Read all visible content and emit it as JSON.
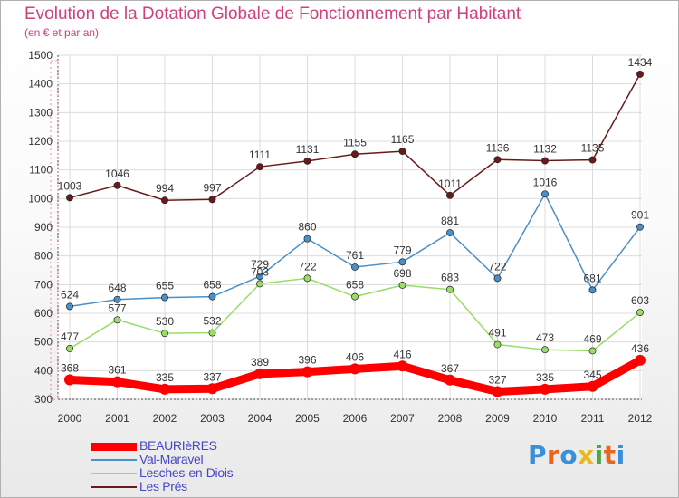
{
  "header": {
    "title": "Evolution de la Dotation Globale de Fonctionnement par Habitant",
    "subtitle": "(en € et par an)"
  },
  "logo": {
    "text": "Proxiti",
    "letter_colors": [
      "#3a8fd8",
      "#e8661e",
      "#3a8fd8",
      "#e8b81e",
      "#4aa84a",
      "#e8661e",
      "#3a8fd8"
    ]
  },
  "chart_data": {
    "type": "line",
    "title": "Evolution de la Dotation Globale de Fonctionnement par Habitant",
    "subtitle": "(en € et par an)",
    "x": [
      "2000",
      "2001",
      "2002",
      "2003",
      "2004",
      "2005",
      "2006",
      "2007",
      "2008",
      "2009",
      "2010",
      "2011",
      "2012"
    ],
    "y_ticks": [
      300,
      400,
      500,
      600,
      700,
      800,
      900,
      1000,
      1100,
      1200,
      1300,
      1400,
      1500
    ],
    "ylim": [
      300,
      1500
    ],
    "grid": true,
    "legend_position": "bottom-left",
    "series": [
      {
        "name": "BEAURIèRES",
        "color": "#ff0000",
        "emphasis": true,
        "values": [
          368,
          361,
          335,
          337,
          389,
          396,
          406,
          416,
          367,
          327,
          335,
          345,
          436
        ]
      },
      {
        "name": "Val-Maravel",
        "color": "#4a90c8",
        "emphasis": false,
        "values": [
          624,
          648,
          655,
          658,
          729,
          860,
          761,
          779,
          881,
          722,
          1016,
          681,
          901
        ]
      },
      {
        "name": "Lesches-en-Diois",
        "color": "#99dd66",
        "emphasis": false,
        "values": [
          477,
          577,
          530,
          532,
          703,
          722,
          658,
          698,
          683,
          491,
          473,
          469,
          603
        ]
      },
      {
        "name": "Les Prés",
        "color": "#6a1a1a",
        "emphasis": false,
        "values": [
          1003,
          1046,
          994,
          997,
          1111,
          1131,
          1155,
          1165,
          1011,
          1136,
          1132,
          1135,
          1434
        ]
      }
    ]
  }
}
